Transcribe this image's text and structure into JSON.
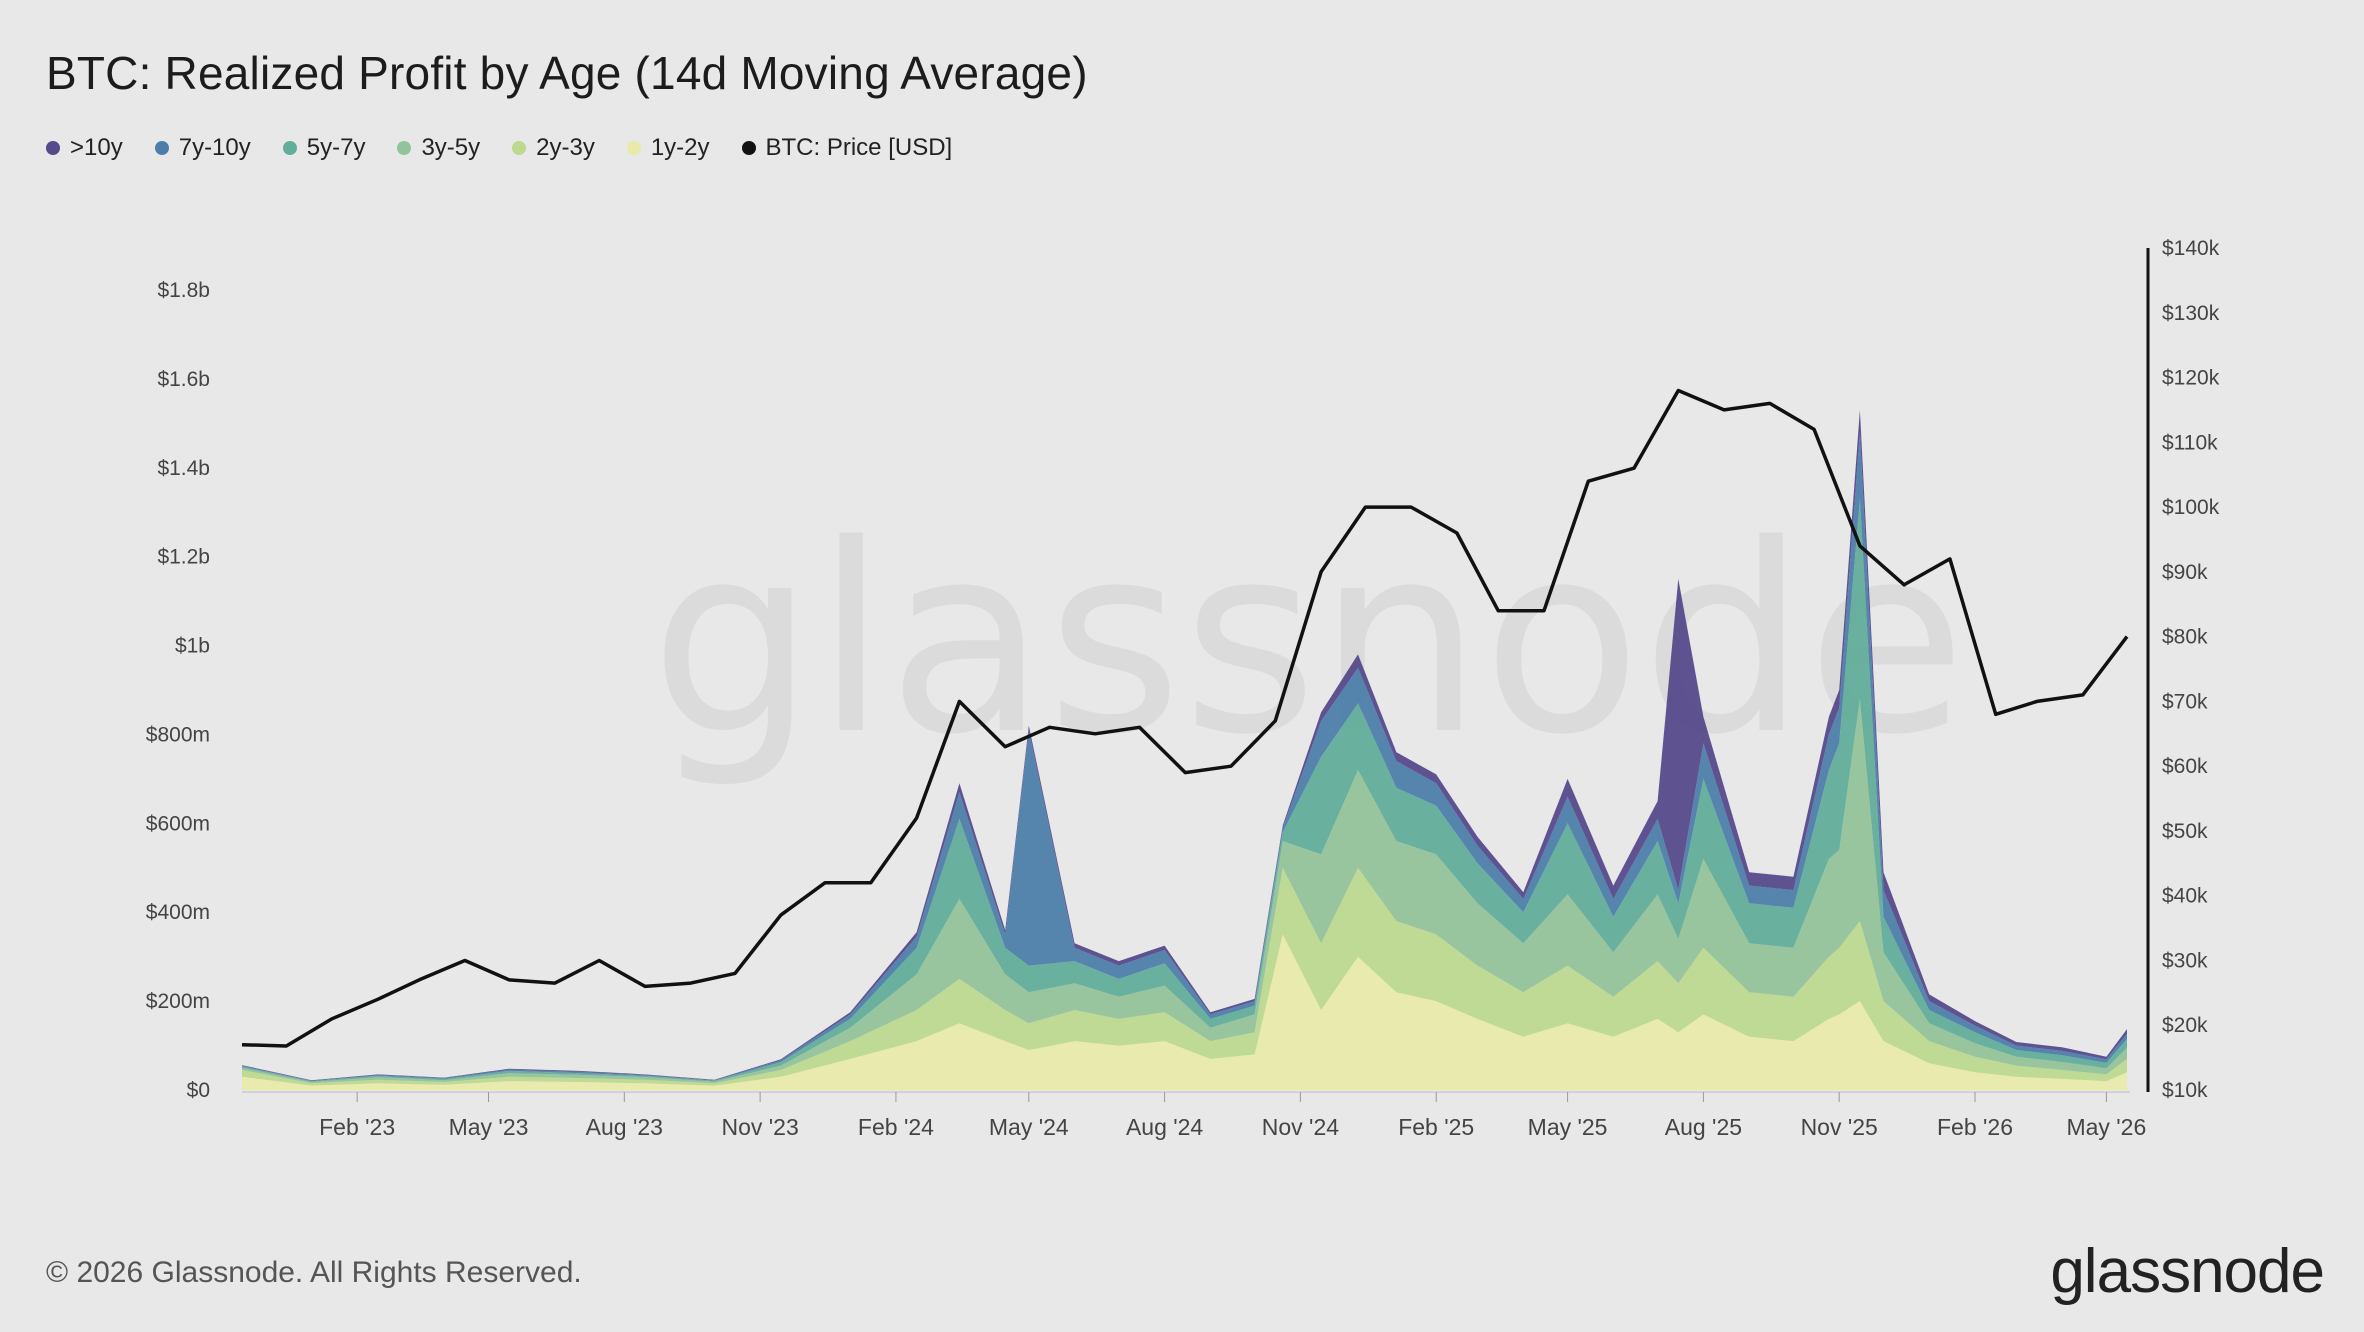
{
  "title": "BTC: Realized Profit by Age (14d Moving Average)",
  "copyright": "© 2026 Glassnode. All Rights Reserved.",
  "brand": "glassnode",
  "watermark": "glassnode",
  "legend": [
    {
      "label": ">10y",
      "color": "#574a8c"
    },
    {
      "label": "7y-10y",
      "color": "#4d7eaa"
    },
    {
      "label": "5y-7y",
      "color": "#63ad9b"
    },
    {
      "label": "3y-5y",
      "color": "#93c39a"
    },
    {
      "label": "2y-3y",
      "color": "#bcd98f"
    },
    {
      "label": "1y-2y",
      "color": "#e9eaaa"
    },
    {
      "label": "BTC: Price [USD]",
      "color": "#111111"
    }
  ],
  "chart_data": {
    "type": "area",
    "title": "BTC: Realized Profit by Age (14d Moving Average)",
    "stacked": true,
    "y_left": {
      "range": [
        0,
        1800000000
      ],
      "ticks": [
        "$0",
        "$200m",
        "$400m",
        "$600m",
        "$800m",
        "$1b",
        "$1.2b",
        "$1.4b",
        "$1.6b",
        "$1.8b"
      ]
    },
    "y_right": {
      "range": [
        10000,
        140000
      ],
      "ticks": [
        "$10k",
        "$20k",
        "$30k",
        "$40k",
        "$50k",
        "$60k",
        "$70k",
        "$80k",
        "$90k",
        "$100k",
        "$110k",
        "$120k",
        "$130k",
        "$140k"
      ]
    },
    "x_ticks": [
      "Feb '23",
      "May '23",
      "Aug '23",
      "Nov '23",
      "Feb '24",
      "May '24",
      "Aug '24",
      "Nov '24",
      "Feb '25",
      "May '25",
      "Aug '25",
      "Nov '25",
      "Feb '26",
      "May '26"
    ],
    "x": [
      "2022-11-15",
      "2023-01-01",
      "2023-02-15",
      "2023-04-01",
      "2023-05-15",
      "2023-07-01",
      "2023-08-15",
      "2023-10-01",
      "2023-11-15",
      "2024-01-01",
      "2024-02-15",
      "2024-03-15",
      "2024-04-15",
      "2024-05-01",
      "2024-06-01",
      "2024-07-01",
      "2024-08-01",
      "2024-09-01",
      "2024-10-01",
      "2024-10-20",
      "2024-11-15",
      "2024-12-10",
      "2025-01-05",
      "2025-02-01",
      "2025-03-01",
      "2025-04-01",
      "2025-05-01",
      "2025-06-01",
      "2025-07-01",
      "2025-07-15",
      "2025-08-01",
      "2025-09-01",
      "2025-10-01",
      "2025-10-25",
      "2025-11-01",
      "2025-11-15",
      "2025-12-01",
      "2026-01-01",
      "2026-02-01",
      "2026-03-01",
      "2026-04-01",
      "2026-05-01",
      "2026-05-15"
    ],
    "series": [
      {
        "name": "1y-2y",
        "values": [
          30000000,
          10000000,
          15000000,
          12000000,
          20000000,
          18000000,
          15000000,
          10000000,
          30000000,
          70000000,
          110000000,
          150000000,
          110000000,
          90000000,
          110000000,
          100000000,
          110000000,
          70000000,
          80000000,
          350000000,
          180000000,
          300000000,
          220000000,
          200000000,
          160000000,
          120000000,
          150000000,
          120000000,
          160000000,
          130000000,
          170000000,
          120000000,
          110000000,
          160000000,
          170000000,
          200000000,
          110000000,
          60000000,
          40000000,
          30000000,
          25000000,
          20000000,
          40000000
        ]
      },
      {
        "name": "2y-3y",
        "values": [
          15000000,
          5000000,
          8000000,
          6000000,
          10000000,
          9000000,
          8000000,
          5000000,
          15000000,
          40000000,
          70000000,
          100000000,
          70000000,
          60000000,
          70000000,
          60000000,
          65000000,
          40000000,
          50000000,
          150000000,
          150000000,
          200000000,
          160000000,
          150000000,
          120000000,
          100000000,
          130000000,
          90000000,
          130000000,
          110000000,
          150000000,
          100000000,
          100000000,
          140000000,
          150000000,
          180000000,
          90000000,
          50000000,
          35000000,
          25000000,
          20000000,
          15000000,
          30000000
        ]
      },
      {
        "name": "3y-5y",
        "values": [
          5000000,
          3000000,
          6000000,
          4000000,
          8000000,
          7000000,
          6000000,
          4000000,
          10000000,
          30000000,
          80000000,
          180000000,
          80000000,
          70000000,
          60000000,
          50000000,
          60000000,
          30000000,
          40000000,
          60000000,
          200000000,
          220000000,
          180000000,
          180000000,
          140000000,
          110000000,
          160000000,
          100000000,
          150000000,
          100000000,
          200000000,
          110000000,
          110000000,
          220000000,
          220000000,
          500000000,
          110000000,
          40000000,
          30000000,
          20000000,
          18000000,
          14000000,
          25000000
        ]
      },
      {
        "name": "5y-7y",
        "values": [
          3000000,
          2000000,
          3000000,
          3000000,
          5000000,
          4000000,
          3000000,
          2000000,
          8000000,
          20000000,
          60000000,
          180000000,
          60000000,
          60000000,
          50000000,
          40000000,
          50000000,
          20000000,
          20000000,
          20000000,
          220000000,
          150000000,
          120000000,
          110000000,
          90000000,
          70000000,
          160000000,
          80000000,
          120000000,
          80000000,
          180000000,
          90000000,
          90000000,
          200000000,
          240000000,
          450000000,
          80000000,
          30000000,
          25000000,
          15000000,
          15000000,
          12000000,
          20000000
        ]
      },
      {
        "name": "7y-10y",
        "values": [
          2000000,
          1000000,
          2000000,
          2000000,
          3000000,
          3000000,
          2000000,
          1000000,
          4000000,
          10000000,
          25000000,
          60000000,
          30000000,
          530000000,
          30000000,
          30000000,
          30000000,
          10000000,
          10000000,
          10000000,
          80000000,
          80000000,
          60000000,
          50000000,
          40000000,
          30000000,
          60000000,
          40000000,
          50000000,
          30000000,
          80000000,
          40000000,
          40000000,
          80000000,
          80000000,
          150000000,
          60000000,
          20000000,
          15000000,
          10000000,
          10000000,
          8000000,
          12000000
        ]
      },
      {
        "name": ">10y",
        "values": [
          1000000,
          1000000,
          1000000,
          1000000,
          2000000,
          2000000,
          1000000,
          1000000,
          2000000,
          5000000,
          10000000,
          20000000,
          10000000,
          10000000,
          10000000,
          10000000,
          10000000,
          5000000,
          5000000,
          5000000,
          20000000,
          30000000,
          20000000,
          20000000,
          20000000,
          15000000,
          40000000,
          30000000,
          40000000,
          700000000,
          60000000,
          30000000,
          30000000,
          40000000,
          40000000,
          50000000,
          40000000,
          15000000,
          10000000,
          8000000,
          8000000,
          6000000,
          10000000
        ]
      }
    ],
    "price": {
      "name": "BTC: Price [USD]",
      "x": [
        "2022-11-15",
        "2022-12-15",
        "2023-01-15",
        "2023-02-15",
        "2023-03-15",
        "2023-04-15",
        "2023-05-15",
        "2023-06-15",
        "2023-07-15",
        "2023-08-15",
        "2023-09-15",
        "2023-10-15",
        "2023-11-15",
        "2023-12-15",
        "2024-01-15",
        "2024-02-15",
        "2024-03-15",
        "2024-04-15",
        "2024-05-15",
        "2024-06-15",
        "2024-07-15",
        "2024-08-15",
        "2024-09-15",
        "2024-10-15",
        "2024-11-15",
        "2024-12-15",
        "2025-01-15",
        "2025-02-15",
        "2025-03-15",
        "2025-04-15",
        "2025-05-15",
        "2025-06-15",
        "2025-07-15",
        "2025-08-15",
        "2025-09-15",
        "2025-10-15",
        "2025-11-15",
        "2025-12-15",
        "2026-01-15",
        "2026-02-15",
        "2026-03-15",
        "2026-04-15",
        "2026-05-15"
      ],
      "values": [
        17000,
        16800,
        21000,
        24000,
        27000,
        30000,
        27000,
        26500,
        30000,
        26000,
        26500,
        28000,
        37000,
        42000,
        42000,
        52000,
        70000,
        63000,
        66000,
        65000,
        66000,
        59000,
        60000,
        67000,
        90000,
        100000,
        100000,
        96000,
        84000,
        84000,
        104000,
        106000,
        118000,
        115000,
        116000,
        112000,
        94000,
        88000,
        92000,
        68000,
        70000,
        71000,
        80000
      ]
    }
  }
}
